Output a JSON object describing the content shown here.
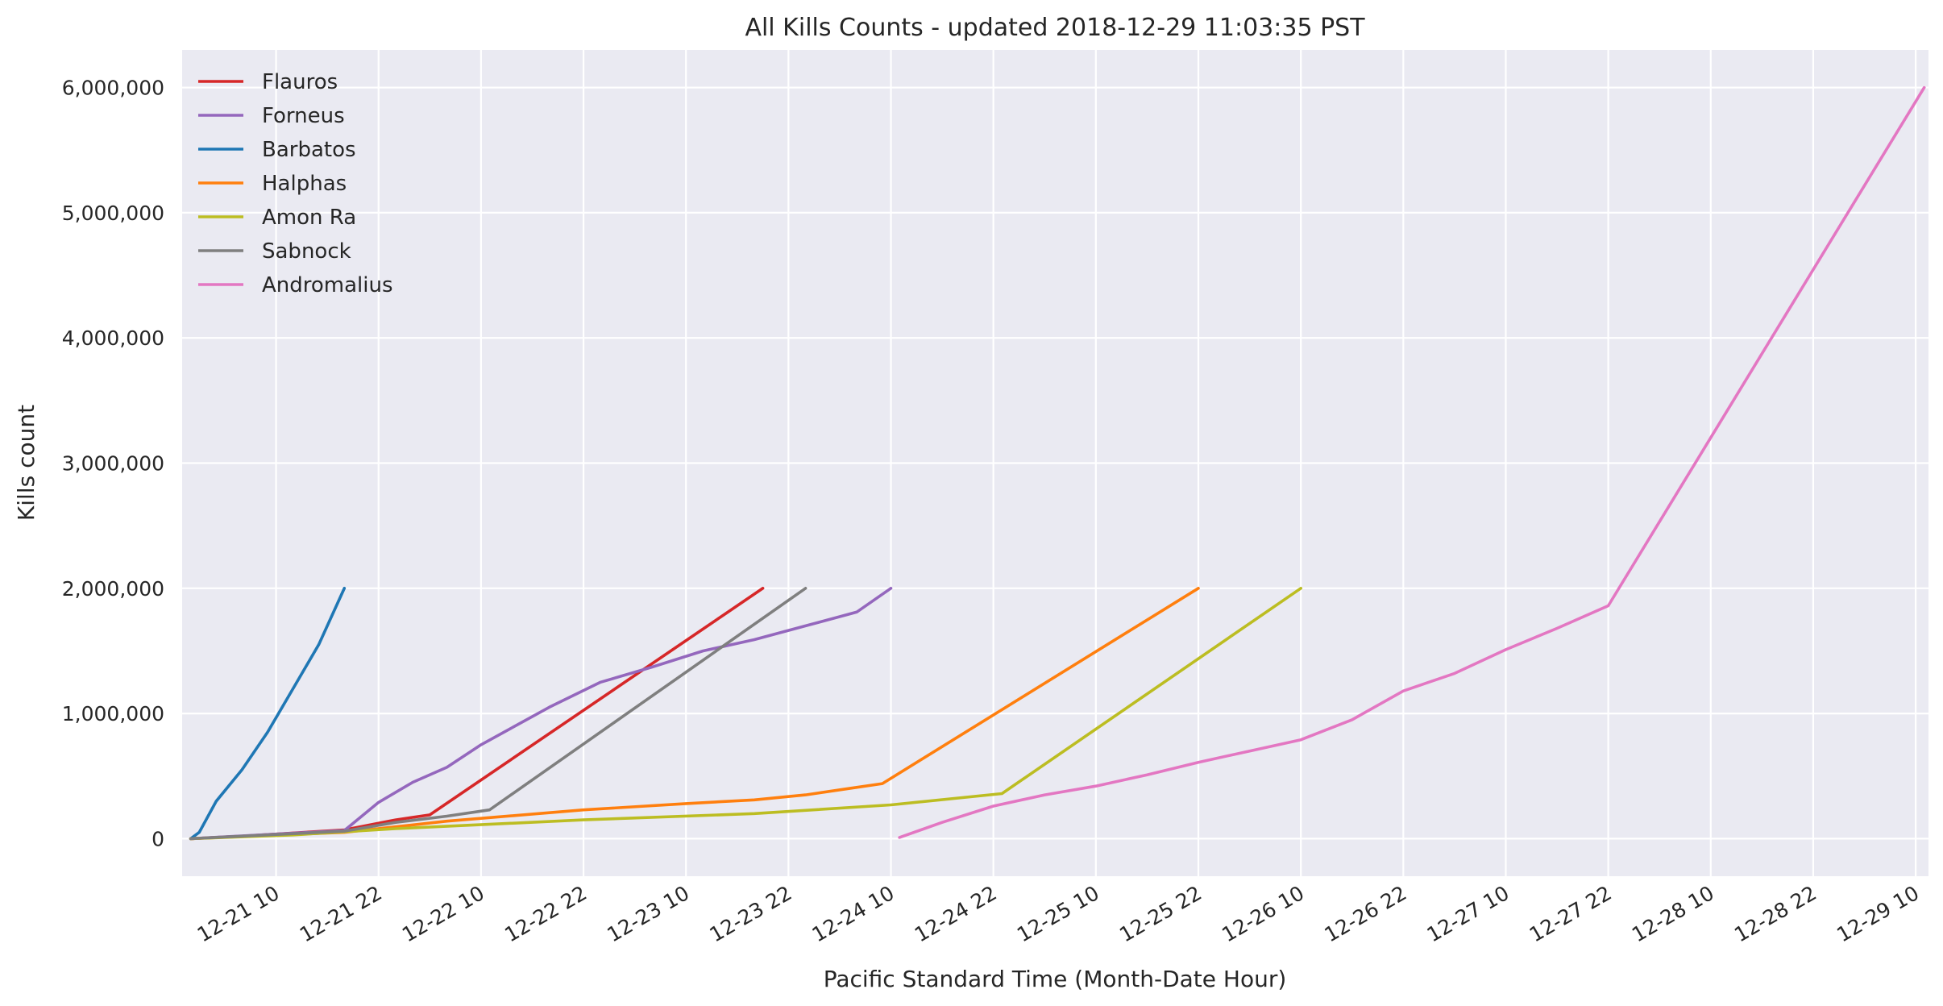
{
  "chart_data": {
    "type": "line",
    "title": "All Kills Counts - updated 2018-12-29 11:03:35 PST",
    "xlabel": "Pacific Standard Time (Month-Date Hour)",
    "ylabel": "Kills count",
    "x_unit": "datetime",
    "x_ticks": [
      "2018-12-21T10:00",
      "2018-12-21T22:00",
      "2018-12-22T10:00",
      "2018-12-22T22:00",
      "2018-12-23T10:00",
      "2018-12-23T22:00",
      "2018-12-24T10:00",
      "2018-12-24T22:00",
      "2018-12-25T10:00",
      "2018-12-25T22:00",
      "2018-12-26T10:00",
      "2018-12-26T22:00",
      "2018-12-27T10:00",
      "2018-12-27T22:00",
      "2018-12-28T10:00",
      "2018-12-28T22:00",
      "2018-12-29T10:00"
    ],
    "x_tick_labels": [
      "12-21 10",
      "12-21 22",
      "12-22 10",
      "12-22 22",
      "12-23 10",
      "12-23 22",
      "12-24 10",
      "12-24 22",
      "12-25 10",
      "12-25 22",
      "12-26 10",
      "12-26 22",
      "12-27 10",
      "12-27 22",
      "12-28 10",
      "12-28 22",
      "12-29 10"
    ],
    "xlim": [
      "2018-12-20T23:00",
      "2018-12-29T11:30"
    ],
    "ylim": [
      -300000,
      6300000
    ],
    "y_ticks": [
      0,
      1000000,
      2000000,
      3000000,
      4000000,
      5000000,
      6000000
    ],
    "y_tick_labels": [
      "0",
      "1,000,000",
      "2,000,000",
      "3,000,000",
      "4,000,000",
      "5,000,000",
      "6,000,000"
    ],
    "grid": true,
    "legend_position": "top-left",
    "series": [
      {
        "name": "Flauros",
        "color": "#d62728",
        "points": [
          [
            "2018-12-21T00:00",
            0
          ],
          [
            "2018-12-21T06:00",
            20000
          ],
          [
            "2018-12-21T12:00",
            45000
          ],
          [
            "2018-12-21T18:00",
            70000
          ],
          [
            "2018-12-22T00:00",
            150000
          ],
          [
            "2018-12-22T04:00",
            190000
          ],
          [
            "2018-12-23T19:00",
            2000000
          ]
        ]
      },
      {
        "name": "Forneus",
        "color": "#9467bd",
        "points": [
          [
            "2018-12-21T00:00",
            0
          ],
          [
            "2018-12-21T18:00",
            65000
          ],
          [
            "2018-12-21T22:00",
            290000
          ],
          [
            "2018-12-22T02:00",
            450000
          ],
          [
            "2018-12-22T06:00",
            570000
          ],
          [
            "2018-12-22T10:00",
            750000
          ],
          [
            "2018-12-22T18:00",
            1050000
          ],
          [
            "2018-12-23T00:00",
            1250000
          ],
          [
            "2018-12-23T06:00",
            1370000
          ],
          [
            "2018-12-23T12:00",
            1500000
          ],
          [
            "2018-12-23T18:00",
            1590000
          ],
          [
            "2018-12-24T00:00",
            1700000
          ],
          [
            "2018-12-24T06:00",
            1810000
          ],
          [
            "2018-12-24T10:00",
            2000000
          ]
        ]
      },
      {
        "name": "Barbatos",
        "color": "#1f77b4",
        "points": [
          [
            "2018-12-21T00:00",
            0
          ],
          [
            "2018-12-21T01:00",
            50000
          ],
          [
            "2018-12-21T03:00",
            300000
          ],
          [
            "2018-12-21T06:00",
            550000
          ],
          [
            "2018-12-21T09:00",
            850000
          ],
          [
            "2018-12-21T12:00",
            1200000
          ],
          [
            "2018-12-21T15:00",
            1550000
          ],
          [
            "2018-12-21T18:00",
            2000000
          ]
        ]
      },
      {
        "name": "Halphas",
        "color": "#ff7f0e",
        "points": [
          [
            "2018-12-21T00:00",
            0
          ],
          [
            "2018-12-21T18:00",
            50000
          ],
          [
            "2018-12-22T06:00",
            140000
          ],
          [
            "2018-12-22T22:00",
            230000
          ],
          [
            "2018-12-23T10:00",
            280000
          ],
          [
            "2018-12-23T18:00",
            310000
          ],
          [
            "2018-12-24T00:00",
            350000
          ],
          [
            "2018-12-24T05:00",
            400000
          ],
          [
            "2018-12-24T09:00",
            440000
          ],
          [
            "2018-12-25T22:00",
            2000000
          ]
        ]
      },
      {
        "name": "Amon Ra",
        "color": "#bcbd22",
        "points": [
          [
            "2018-12-21T00:00",
            0
          ],
          [
            "2018-12-21T12:00",
            30000
          ],
          [
            "2018-12-22T00:00",
            80000
          ],
          [
            "2018-12-22T22:00",
            150000
          ],
          [
            "2018-12-23T18:00",
            200000
          ],
          [
            "2018-12-24T10:00",
            270000
          ],
          [
            "2018-12-24T23:00",
            360000
          ],
          [
            "2018-12-26T10:00",
            2000000
          ]
        ]
      },
      {
        "name": "Sabnock",
        "color": "#7f7f7f",
        "points": [
          [
            "2018-12-21T00:00",
            0
          ],
          [
            "2018-12-21T18:00",
            60000
          ],
          [
            "2018-12-22T00:00",
            130000
          ],
          [
            "2018-12-22T06:00",
            180000
          ],
          [
            "2018-12-22T11:00",
            230000
          ],
          [
            "2018-12-24T00:00",
            2000000
          ]
        ]
      },
      {
        "name": "Andromalius",
        "color": "#e377c2",
        "points": [
          [
            "2018-12-24T11:00",
            10000
          ],
          [
            "2018-12-24T16:00",
            130000
          ],
          [
            "2018-12-24T22:00",
            260000
          ],
          [
            "2018-12-25T04:00",
            350000
          ],
          [
            "2018-12-25T10:00",
            420000
          ],
          [
            "2018-12-25T16:00",
            510000
          ],
          [
            "2018-12-25T22:00",
            610000
          ],
          [
            "2018-12-26T04:00",
            700000
          ],
          [
            "2018-12-26T10:00",
            790000
          ],
          [
            "2018-12-26T16:00",
            950000
          ],
          [
            "2018-12-26T22:00",
            1180000
          ],
          [
            "2018-12-27T04:00",
            1320000
          ],
          [
            "2018-12-27T10:00",
            1510000
          ],
          [
            "2018-12-27T16:00",
            1680000
          ],
          [
            "2018-12-27T22:00",
            1860000
          ],
          [
            "2018-12-29T11:00",
            6000000
          ]
        ]
      }
    ]
  }
}
